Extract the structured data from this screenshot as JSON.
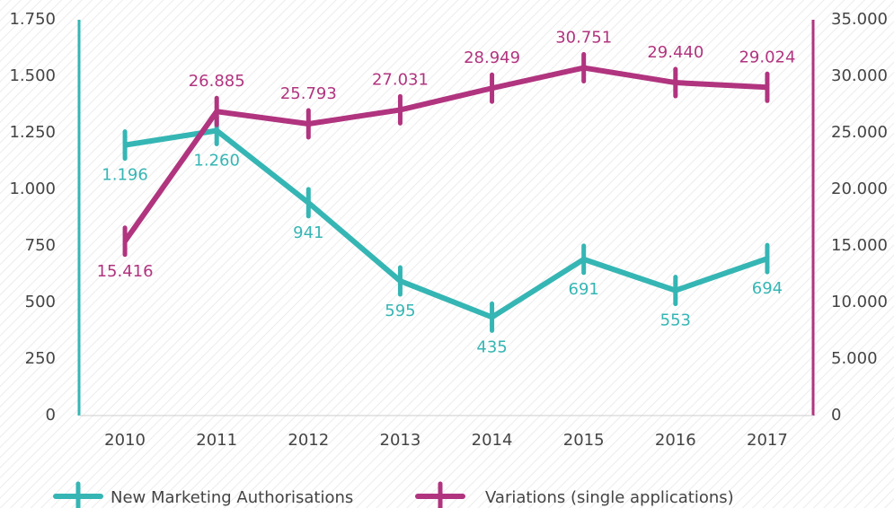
{
  "chart_data": {
    "type": "line",
    "categories": [
      "2010",
      "2011",
      "2012",
      "2013",
      "2014",
      "2015",
      "2016",
      "2017"
    ],
    "series": [
      {
        "name": "New Marketing Authorisations",
        "color": "#35b6b4",
        "axis": "y",
        "values": [
          1196,
          1260,
          941,
          595,
          435,
          691,
          553,
          694
        ],
        "value_labels": [
          "1.196",
          "1.260",
          "941",
          "595",
          "435",
          "691",
          "553",
          "694"
        ]
      },
      {
        "name": "Variations (single applications)",
        "color": "#b1347f",
        "axis": "y2",
        "values": [
          15416,
          26885,
          25793,
          27031,
          28949,
          30751,
          29440,
          29024
        ],
        "value_labels": [
          "15.416",
          "26.885",
          "25.793",
          "27.031",
          "28.949",
          "30.751",
          "29.440",
          "29.024"
        ]
      }
    ],
    "ylim": [
      0,
      1750
    ],
    "yticks": [
      0,
      250,
      500,
      750,
      {
        "value": 1000,
        "label": "1.000"
      },
      {
        "value": 1250,
        "label": "1.250"
      },
      {
        "value": 1500,
        "label": "1.500"
      },
      {
        "value": 1750,
        "label": "1.750"
      }
    ],
    "y2lim": [
      0,
      35000
    ],
    "y2ticks": [
      0,
      {
        "value": 5000,
        "label": "5.000"
      },
      {
        "value": 10000,
        "label": "10.000"
      },
      {
        "value": 15000,
        "label": "15.000"
      },
      {
        "value": 20000,
        "label": "20.000"
      },
      {
        "value": 25000,
        "label": "25.000"
      },
      {
        "value": 30000,
        "label": "30.000"
      },
      {
        "value": 35000,
        "label": "35.000"
      }
    ],
    "legend": "bottom"
  }
}
